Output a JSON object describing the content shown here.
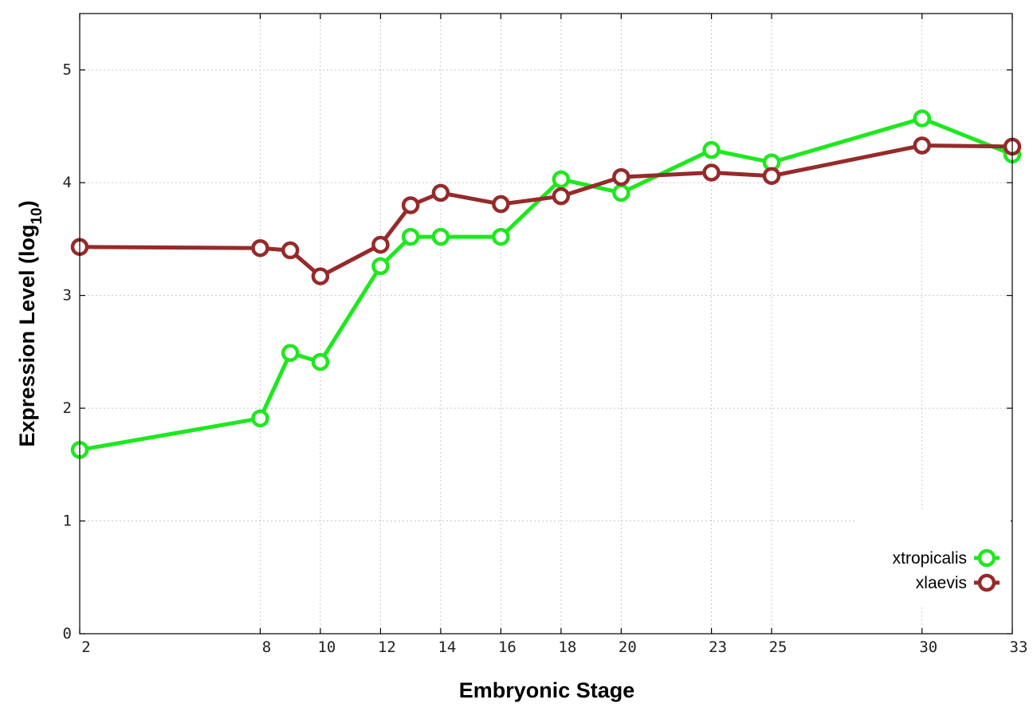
{
  "chart_data": {
    "type": "line",
    "x_type": "categorical-stage",
    "x": [
      2,
      8,
      9,
      10,
      12,
      13,
      14,
      16,
      18,
      20,
      23,
      25,
      30,
      33
    ],
    "xticks": [
      "2",
      "8",
      "10",
      "12",
      "14",
      "16",
      "18",
      "20",
      "23",
      "25",
      "30",
      "33"
    ],
    "yticks": [
      "0",
      "1",
      "2",
      "3",
      "4",
      "5"
    ],
    "ylim": [
      0,
      5.5
    ],
    "xlabel": "Embryonic Stage",
    "ylabel_main": "Expression Level (log",
    "ylabel_sub": "10",
    "ylabel_close": ")",
    "grid": true,
    "legend_position": "bottom-right",
    "series": [
      {
        "name": "xtropicalis",
        "color": "#1ee81e",
        "values": [
          1.63,
          1.91,
          2.49,
          2.41,
          3.26,
          3.52,
          3.52,
          3.52,
          4.03,
          3.91,
          4.29,
          4.18,
          4.57,
          4.25
        ]
      },
      {
        "name": "xlaevis",
        "color": "#962a2a",
        "values": [
          3.43,
          3.42,
          3.4,
          3.17,
          3.45,
          3.8,
          3.91,
          3.81,
          3.88,
          4.05,
          4.09,
          4.06,
          4.33,
          4.32
        ]
      }
    ]
  }
}
